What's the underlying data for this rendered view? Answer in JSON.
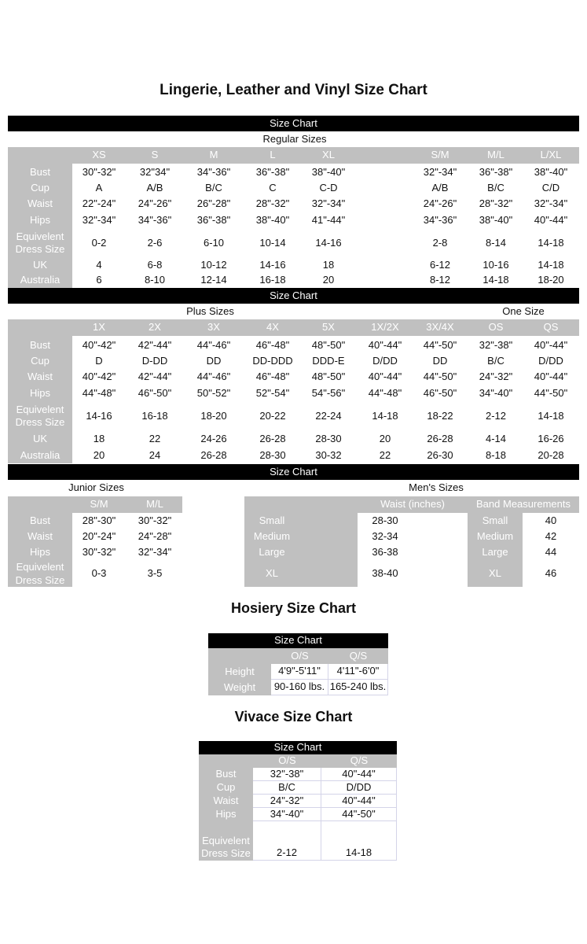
{
  "title": "Lingerie, Leather and Vinyl Size Chart",
  "regular": {
    "bar": "Size Chart",
    "section_label": "Regular Sizes",
    "columns": [
      "XS",
      "S",
      "M",
      "L",
      "XL",
      "S/M",
      "M/L",
      "L/XL"
    ],
    "rows": [
      {
        "label": "Bust",
        "values": [
          "30\"-32\"",
          "32\"34\"",
          "34\"-36\"",
          "36\"-38\"",
          "38\"-40\"",
          "32\"-34\"",
          "36\"-38\"",
          "38\"-40\""
        ]
      },
      {
        "label": "Cup",
        "values": [
          "A",
          "A/B",
          "B/C",
          "C",
          "C-D",
          "A/B",
          "B/C",
          "C/D"
        ]
      },
      {
        "label": "Waist",
        "values": [
          "22\"-24\"",
          "24\"-26\"",
          "26\"-28\"",
          "28\"-32\"",
          "32\"-34\"",
          "24\"-26\"",
          "28\"-32\"",
          "32\"-34\""
        ]
      },
      {
        "label": "Hips",
        "values": [
          "32\"-34\"",
          "34\"-36\"",
          "36\"-38\"",
          "38\"-40\"",
          "41\"-44\"",
          "34\"-36\"",
          "38\"-40\"",
          "40\"-44\""
        ]
      },
      {
        "label": "Equivelent Dress Size",
        "values": [
          "0-2",
          "2-6",
          "6-10",
          "10-14",
          "14-16",
          "2-8",
          "8-14",
          "14-18"
        ]
      },
      {
        "label": "UK",
        "values": [
          "4",
          "6-8",
          "10-12",
          "14-16",
          "18",
          "6-12",
          "10-16",
          "14-18"
        ]
      },
      {
        "label": "Australia",
        "values": [
          "6",
          "8-10",
          "12-14",
          "16-18",
          "20",
          "8-12",
          "14-18",
          "18-20"
        ]
      }
    ]
  },
  "plus": {
    "bar": "Size Chart",
    "section_label": "Plus Sizes",
    "one_size_label": "One Size",
    "columns": [
      "1X",
      "2X",
      "3X",
      "4X",
      "5X",
      "1X/2X",
      "3X/4X",
      "OS",
      "QS"
    ],
    "rows": [
      {
        "label": "Bust",
        "values": [
          "40\"-42\"",
          "42\"-44\"",
          "44\"-46\"",
          "46\"-48\"",
          "48\"-50\"",
          "40\"-44\"",
          "44\"-50\"",
          "32\"-38\"",
          "40\"-44\""
        ]
      },
      {
        "label": "Cup",
        "values": [
          "D",
          "D-DD",
          "DD",
          "DD-DDD",
          "DDD-E",
          "D/DD",
          "DD",
          "B/C",
          "D/DD"
        ]
      },
      {
        "label": "Waist",
        "values": [
          "40\"-42\"",
          "42\"-44\"",
          "44\"-46\"",
          "46\"-48\"",
          "48\"-50\"",
          "40\"-44\"",
          "44\"-50\"",
          "24\"-32\"",
          "40\"-44\""
        ]
      },
      {
        "label": "Hips",
        "values": [
          "44\"-48\"",
          "46\"-50\"",
          "50\"-52\"",
          "52\"-54\"",
          "54\"-56\"",
          "44\"-48\"",
          "46\"-50\"",
          "34\"-40\"",
          "44\"-50\""
        ]
      },
      {
        "label": "Equivelent Dress Size",
        "values": [
          "14-16",
          "16-18",
          "18-20",
          "20-22",
          "22-24",
          "14-18",
          "18-22",
          "2-12",
          "14-18"
        ]
      },
      {
        "label": "UK",
        "values": [
          "18",
          "22",
          "24-26",
          "26-28",
          "28-30",
          "20",
          "26-28",
          "4-14",
          "16-26"
        ]
      },
      {
        "label": "Australia",
        "values": [
          "20",
          "24",
          "26-28",
          "28-30",
          "30-32",
          "22",
          "26-30",
          "8-18",
          "20-28"
        ]
      }
    ]
  },
  "junior": {
    "bar": "Size Chart",
    "section_label": "Junior Sizes",
    "columns": [
      "S/M",
      "M/L"
    ],
    "rows": [
      {
        "label": "Bust",
        "values": [
          "28\"-30\"",
          "30\"-32\""
        ]
      },
      {
        "label": "Waist",
        "values": [
          "20\"-24\"",
          "24\"-28\""
        ]
      },
      {
        "label": "Hips",
        "values": [
          "30\"-32\"",
          "32\"-34\""
        ]
      },
      {
        "label": "Equivelent Dress Size",
        "values": [
          "0-3",
          "3-5"
        ]
      }
    ]
  },
  "mens": {
    "section_label": "Men's Sizes",
    "waist_header": "Waist (inches)",
    "band_header": "Band Measurements",
    "rows": [
      {
        "label": "Small",
        "waist": "28-30",
        "band_label": "Small",
        "band": "40"
      },
      {
        "label": "Medium",
        "waist": "32-34",
        "band_label": "Medium",
        "band": "42"
      },
      {
        "label": "Large",
        "waist": "36-38",
        "band_label": "Large",
        "band": "44"
      },
      {
        "label": "XL",
        "waist": "38-40",
        "band_label": "XL",
        "band": "46"
      }
    ]
  },
  "hosiery": {
    "title": "Hosiery Size Chart",
    "bar": "Size Chart",
    "columns": [
      "O/S",
      "Q/S"
    ],
    "rows": [
      {
        "label": "Height",
        "values": [
          "4'9\"-5'11\"",
          "4'11\"-6'0\""
        ]
      },
      {
        "label": "Weight",
        "values": [
          "90-160 lbs.",
          "165-240 lbs."
        ]
      }
    ]
  },
  "vivace": {
    "title": "Vivace Size Chart",
    "bar": "Size Chart",
    "columns": [
      "O/S",
      "Q/S"
    ],
    "rows": [
      {
        "label": "Bust",
        "values": [
          "32\"-38\"",
          "40\"-44\""
        ]
      },
      {
        "label": "Cup",
        "values": [
          "B/C",
          "D/DD"
        ]
      },
      {
        "label": "Waist",
        "values": [
          "24\"-32\"",
          "40\"-44\""
        ]
      },
      {
        "label": "Hips",
        "values": [
          "34\"-40\"",
          "44\"-50\""
        ]
      },
      {
        "label": "Equivelent Dress Size",
        "values": [
          "2-12",
          "14-18"
        ]
      }
    ]
  },
  "colors": {
    "bar": "#000000",
    "header_gray": "#c0c0c0",
    "label_text": "#ffffff",
    "value_text": "#111111"
  }
}
